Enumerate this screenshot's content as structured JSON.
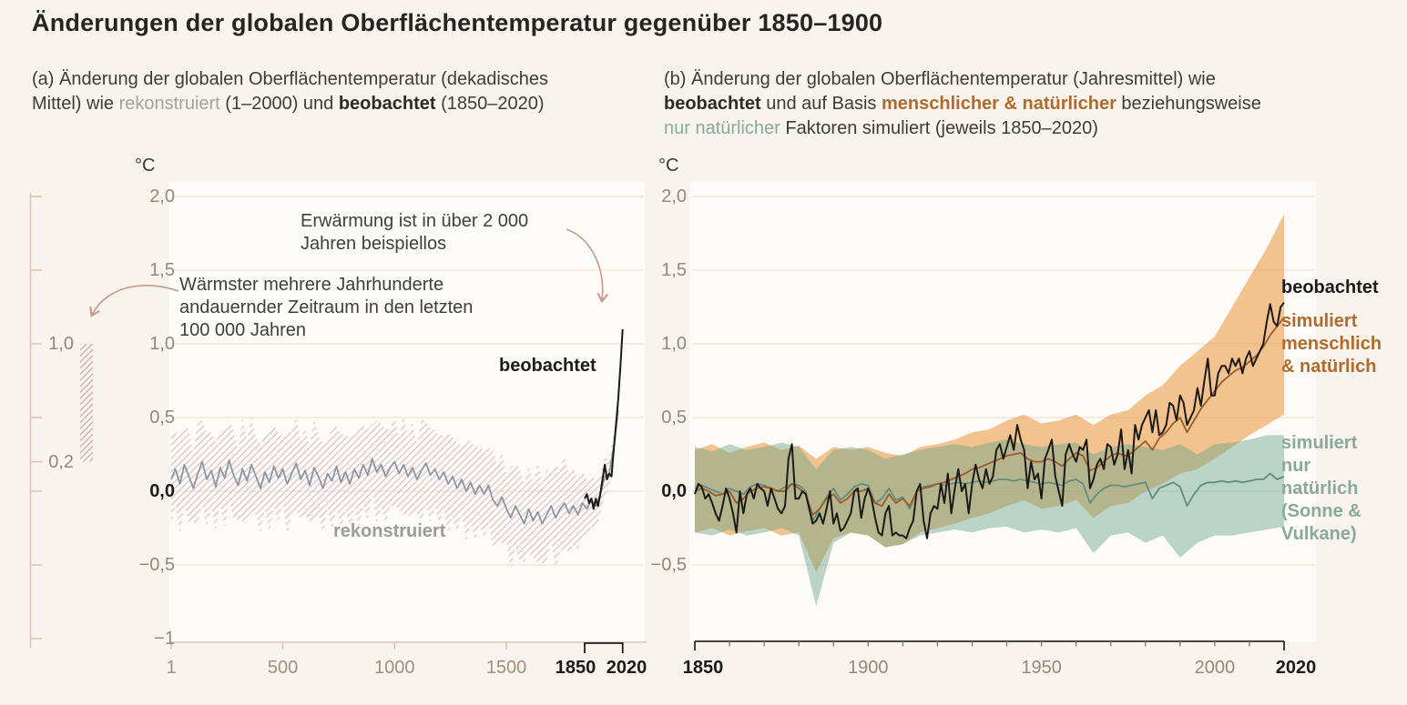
{
  "header": {
    "title": "Änderungen der globalen Oberflächentemperatur gegenüber 1850–1900"
  },
  "panel_a": {
    "subtitle": {
      "line1": "(a) Änderung der globalen Oberflächentemperatur (dekadisches",
      "line2_pre": "Mittel) wie ",
      "recon": "rekonstruiert",
      "mid": " (1–2000) und ",
      "obs": "beobachtet",
      "tail": " (1850–2020)"
    },
    "unit": "°C",
    "annotation_unprecedented": {
      "line1": "Erwärmung ist in über 2 000",
      "line2": "Jahren beispiellos"
    },
    "annotation_warmest": {
      "line1": "Wärmster mehrere Jahrhunderte",
      "line2": "andauernder Zeitraum in den letzten",
      "line3": "100 000 Jahren"
    },
    "labels": {
      "observed": "beobachtet",
      "reconstructed": "rekonstruiert"
    }
  },
  "panel_b": {
    "subtitle": {
      "line1": "(b) Änderung der globalen Oberflächentemperatur (Jahresmittel) wie",
      "obs": "beobachtet",
      "mid1": " und auf Basis ",
      "human": "menschlicher & natürlicher",
      "mid2": " beziehungsweise",
      "natural": "nur natürlicher",
      "tail": " Faktoren simuliert (jeweils 1850–2020)"
    },
    "unit": "°C",
    "labels": {
      "observed": "beobachtet",
      "human": [
        "simuliert",
        "menschlich",
        "& natürlich"
      ],
      "natural": [
        "simuliert",
        "nur",
        "natürlich",
        "(Sonne &",
        "Vulkane)"
      ]
    }
  },
  "colors": {
    "page_bg": "#f8f4ed",
    "plot_bg": "#fcfbf8",
    "grid": "#ebe3d6",
    "observed": "#1b1a18",
    "recon_line": "#8b97a5",
    "recon_hatch": "#d9b3ba",
    "bar_hatch": "#c8aab4",
    "human_natural_line": "#9c5a28",
    "human_natural_band": "#eca04f",
    "natural_line": "#5f8d80",
    "natural_band": "#6ba48c",
    "accent_orange": "#b06a2c",
    "accent_teal": "#8aa99a",
    "gray_label": "#9c9c9a",
    "tick": "#96877b",
    "warm_tick": "#a18e80",
    "tick_bold": "#1c1b19",
    "axis_rose": "#ddc3b7",
    "arrow": "#c59a8e",
    "axis_black": "#2e2b27",
    "minor_tick": "#7b7268"
  },
  "chart_data": [
    {
      "id": "a",
      "type": "line",
      "title": "Änderung der globalen Oberflächentemperatur (dekadisches Mittel) wie rekonstruiert (1–2000) und beobachtet (1850–2020)",
      "ylabel": "°C",
      "ylim": [
        -1,
        2
      ],
      "xlim": [
        1,
        2020
      ],
      "grid": true,
      "y_ticks": [
        {
          "v": 2.0,
          "label": "2,0"
        },
        {
          "v": 1.5,
          "label": "1,5"
        },
        {
          "v": 1.0,
          "label": "1,0"
        },
        {
          "v": 0.5,
          "label": "0,5"
        },
        {
          "v": 0.0,
          "label": "0,0",
          "bold": true
        },
        {
          "v": -0.5,
          "label": "−0,5"
        },
        {
          "v": -1,
          "label": "−1"
        }
      ],
      "x_ticks": [
        {
          "v": 1,
          "label": "1"
        },
        {
          "v": 500,
          "label": "500"
        },
        {
          "v": 1000,
          "label": "1000"
        },
        {
          "v": 1500,
          "label": "1500"
        }
      ],
      "x_bracket": {
        "from": 1850,
        "to": 2020,
        "label_from": "1850",
        "label_to": "2020"
      },
      "sidebar": {
        "bar_range": [
          0.2,
          1.0
        ],
        "tick_values": [
          2,
          1.5,
          1,
          0.5,
          0.2,
          0,
          -0.5,
          -1
        ],
        "labels": [
          {
            "v": 1.0,
            "t": "1,0"
          },
          {
            "v": 0.2,
            "t": "0,2"
          }
        ]
      },
      "series": [
        {
          "name": "rekonstruiert",
          "role": "reconstructed",
          "x_start": 0,
          "x_step": 20,
          "values": [
            0.08,
            0.15,
            0.05,
            0.18,
            0.1,
            0.02,
            0.12,
            0.2,
            0.08,
            0.14,
            0.03,
            0.16,
            0.09,
            0.21,
            0.11,
            0.04,
            0.15,
            0.07,
            0.18,
            0.1,
            0.02,
            0.13,
            0.06,
            0.17,
            0.09,
            0.15,
            0.05,
            0.12,
            0.19,
            0.08,
            0.14,
            0.04,
            0.16,
            0.1,
            0.02,
            0.12,
            0.07,
            0.17,
            0.06,
            0.13,
            0.05,
            0.15,
            0.09,
            0.18,
            0.11,
            0.22,
            0.13,
            0.18,
            0.1,
            0.16,
            0.2,
            0.12,
            0.18,
            0.1,
            0.16,
            0.08,
            0.14,
            0.19,
            0.11,
            0.15,
            0.08,
            0.13,
            0.05,
            0.1,
            0.02,
            0.08,
            0.0,
            0.06,
            -0.02,
            0.04,
            -0.02,
            0.04,
            -0.06,
            -0.1,
            -0.04,
            -0.12,
            -0.18,
            -0.1,
            -0.16,
            -0.22,
            -0.12,
            -0.2,
            -0.14,
            -0.22,
            -0.16,
            -0.1,
            -0.18,
            -0.12,
            -0.08,
            -0.15,
            -0.1,
            -0.16,
            -0.08,
            -0.12,
            -0.06,
            -0.1,
            -0.02,
            0.1,
            0.12,
            0.3,
            0.55
          ],
          "band_halfwidth": [
            0.3,
            0.25,
            0.34,
            0.27,
            0.31,
            0.23,
            0.35,
            0.28,
            0.32,
            0.26,
            0.3,
            0.25,
            0.34,
            0.27,
            0.31,
            0.23,
            0.35,
            0.28,
            0.32,
            0.26,
            0.3,
            0.25,
            0.34,
            0.27,
            0.31,
            0.23,
            0.35,
            0.28,
            0.32,
            0.26,
            0.3,
            0.25,
            0.34,
            0.27,
            0.31,
            0.23,
            0.35,
            0.28,
            0.32,
            0.26,
            0.3,
            0.25,
            0.34,
            0.27,
            0.31,
            0.23,
            0.35,
            0.28,
            0.32,
            0.26,
            0.3,
            0.25,
            0.34,
            0.27,
            0.31,
            0.23,
            0.35,
            0.28,
            0.32,
            0.26,
            0.3,
            0.25,
            0.34,
            0.27,
            0.31,
            0.23,
            0.35,
            0.28,
            0.32,
            0.26,
            0.3,
            0.25,
            0.34,
            0.27,
            0.31,
            0.23,
            0.35,
            0.28,
            0.32,
            0.26,
            0.3,
            0.25,
            0.34,
            0.27,
            0.31,
            0.23,
            0.35,
            0.28,
            0.32,
            0.26,
            0.26,
            0.24,
            0.22,
            0.2,
            0.18,
            0.16,
            0.14,
            0.12,
            0.1,
            0.08,
            0.07
          ]
        },
        {
          "name": "beobachtet",
          "role": "observed",
          "x_start": 1850,
          "x_step": 10,
          "values": [
            -0.05,
            -0.02,
            -0.08,
            -0.05,
            -0.12,
            -0.05,
            -0.1,
            -0.02,
            0.08,
            0.18,
            0.08,
            0.12,
            0.1,
            0.28,
            0.45,
            0.62,
            0.85,
            1.1
          ]
        }
      ]
    },
    {
      "id": "b",
      "type": "line",
      "title": "Änderung der globalen Oberflächentemperatur (Jahresmittel) wie beobachtet und auf Basis menschlicher & natürlicher beziehungsweise nur natürlicher Faktoren simuliert (jeweils 1850–2020)",
      "ylabel": "°C",
      "ylim": [
        -0.5,
        2
      ],
      "xlim": [
        1850,
        2020
      ],
      "grid": true,
      "minor_tick_step": 10,
      "y_ticks": [
        {
          "v": 2.0,
          "label": "2,0"
        },
        {
          "v": 1.5,
          "label": "1,5"
        },
        {
          "v": 1.0,
          "label": "1,0"
        },
        {
          "v": 0.5,
          "label": "0,5"
        },
        {
          "v": 0.0,
          "label": "0,0",
          "bold": true
        },
        {
          "v": -0.5,
          "label": "−0,5"
        }
      ],
      "x_ticks": [
        {
          "v": 1850,
          "label": "1850",
          "bold": true
        },
        {
          "v": 1900,
          "label": "1900"
        },
        {
          "v": 1950,
          "label": "1950"
        },
        {
          "v": 2000,
          "label": "2000"
        },
        {
          "v": 2020,
          "label": "2020",
          "bold": true
        }
      ],
      "series": [
        {
          "name": "simuliert menschlich & natürlich",
          "role": "human_natural",
          "x_start": 1850,
          "x_step": 2,
          "values": [
            0.0,
            0.02,
            0.0,
            -0.03,
            -0.02,
            0.0,
            -0.08,
            -0.05,
            0.0,
            0.02,
            0.03,
            0.02,
            0.0,
            0.0,
            0.05,
            0.02,
            -0.02,
            -0.16,
            -0.12,
            -0.05,
            -0.02,
            -0.08,
            -0.05,
            0.0,
            0.0,
            0.02,
            -0.08,
            -0.1,
            -0.02,
            -0.08,
            -0.05,
            -0.1,
            0.0,
            0.02,
            0.03,
            0.05,
            0.06,
            0.08,
            0.1,
            0.12,
            0.15,
            0.16,
            0.18,
            0.2,
            0.22,
            0.24,
            0.25,
            0.26,
            0.22,
            0.2,
            0.2,
            0.22,
            0.2,
            0.17,
            0.22,
            0.26,
            0.24,
            0.14,
            0.16,
            0.2,
            0.24,
            0.26,
            0.24,
            0.26,
            0.3,
            0.34,
            0.28,
            0.36,
            0.4,
            0.46,
            0.5,
            0.4,
            0.48,
            0.56,
            0.62,
            0.68,
            0.74,
            0.78,
            0.82,
            0.84,
            0.88,
            0.92,
            0.98,
            1.06,
            1.12,
            1.18
          ],
          "band": {
            "x_start": 1850,
            "x_step": 5,
            "top": [
              0.28,
              0.32,
              0.26,
              0.3,
              0.33,
              0.28,
              0.31,
              0.22,
              0.3,
              0.28,
              0.3,
              0.26,
              0.24,
              0.3,
              0.32,
              0.35,
              0.4,
              0.42,
              0.48,
              0.52,
              0.46,
              0.48,
              0.52,
              0.45,
              0.52,
              0.55,
              0.65,
              0.72,
              0.85,
              0.95,
              1.05,
              1.25,
              1.45,
              1.65,
              1.88
            ],
            "bottom": [
              -0.28,
              -0.25,
              -0.3,
              -0.27,
              -0.25,
              -0.3,
              -0.28,
              -0.55,
              -0.32,
              -0.28,
              -0.3,
              -0.38,
              -0.36,
              -0.28,
              -0.25,
              -0.22,
              -0.18,
              -0.15,
              -0.1,
              -0.06,
              -0.12,
              -0.1,
              -0.06,
              -0.18,
              -0.1,
              -0.08,
              0.0,
              0.05,
              0.12,
              0.15,
              0.22,
              0.3,
              0.38,
              0.45,
              0.52
            ]
          }
        },
        {
          "name": "simuliert nur natürlich (Sonne & Vulkane)",
          "role": "natural_only",
          "x_start": 1850,
          "x_step": 2,
          "values": [
            0.02,
            0.04,
            0.02,
            0.0,
            -0.02,
            0.02,
            0.0,
            -0.02,
            0.03,
            0.05,
            0.04,
            0.02,
            0.0,
            0.03,
            0.05,
            0.04,
            0.0,
            -0.2,
            -0.12,
            -0.04,
            0.02,
            -0.06,
            -0.02,
            0.03,
            0.05,
            0.04,
            -0.08,
            -0.05,
            0.02,
            -0.06,
            -0.04,
            -0.12,
            0.0,
            0.03,
            0.04,
            0.05,
            0.04,
            0.05,
            0.06,
            0.05,
            0.06,
            0.07,
            0.06,
            0.07,
            0.08,
            0.08,
            0.07,
            0.08,
            0.07,
            0.06,
            0.05,
            0.06,
            0.05,
            0.04,
            0.07,
            0.08,
            0.05,
            -0.08,
            -0.02,
            0.02,
            0.04,
            0.04,
            0.03,
            0.04,
            0.05,
            0.06,
            -0.05,
            0.02,
            0.04,
            0.06,
            0.03,
            -0.1,
            -0.02,
            0.04,
            0.06,
            0.06,
            0.07,
            0.06,
            0.07,
            0.06,
            0.07,
            0.08,
            0.08,
            0.12,
            0.08,
            0.1
          ],
          "band": {
            "x_start": 1850,
            "x_step": 5,
            "top": [
              0.3,
              0.27,
              0.32,
              0.28,
              0.3,
              0.33,
              0.3,
              0.15,
              0.28,
              0.3,
              0.28,
              0.22,
              0.25,
              0.28,
              0.3,
              0.32,
              0.3,
              0.33,
              0.35,
              0.32,
              0.3,
              0.32,
              0.33,
              0.25,
              0.3,
              0.32,
              0.3,
              0.28,
              0.32,
              0.25,
              0.32,
              0.33,
              0.35,
              0.38,
              0.38
            ],
            "bottom": [
              -0.28,
              -0.3,
              -0.26,
              -0.3,
              -0.28,
              -0.25,
              -0.3,
              -0.78,
              -0.35,
              -0.28,
              -0.3,
              -0.38,
              -0.36,
              -0.3,
              -0.28,
              -0.26,
              -0.28,
              -0.25,
              -0.24,
              -0.28,
              -0.26,
              -0.28,
              -0.25,
              -0.42,
              -0.3,
              -0.28,
              -0.35,
              -0.3,
              -0.45,
              -0.35,
              -0.3,
              -0.3,
              -0.28,
              -0.26,
              -0.24
            ]
          }
        },
        {
          "name": "beobachtet",
          "role": "observed",
          "x_start": 1850,
          "x_step": 1,
          "values": [
            -0.02,
            0.05,
            0.03,
            -0.05,
            -0.02,
            -0.08,
            -0.15,
            -0.2,
            -0.1,
            0.02,
            -0.05,
            -0.15,
            -0.28,
            0.0,
            -0.15,
            -0.02,
            0.02,
            -0.05,
            0.05,
            0.02,
            0.0,
            -0.1,
            0.02,
            -0.05,
            -0.12,
            -0.15,
            -0.1,
            0.22,
            0.32,
            -0.05,
            -0.05,
            0.0,
            -0.02,
            -0.12,
            -0.22,
            -0.2,
            -0.15,
            -0.22,
            -0.12,
            0.0,
            -0.22,
            -0.15,
            -0.27,
            -0.25,
            -0.2,
            -0.15,
            0.0,
            0.02,
            -0.18,
            -0.05,
            0.02,
            -0.05,
            -0.18,
            -0.28,
            -0.3,
            -0.15,
            -0.1,
            -0.3,
            -0.28,
            -0.3,
            -0.3,
            -0.32,
            -0.25,
            -0.2,
            0.0,
            0.05,
            -0.2,
            -0.32,
            -0.15,
            -0.1,
            -0.12,
            0.05,
            -0.08,
            0.12,
            -0.15,
            0.02,
            0.15,
            0.0,
            0.05,
            -0.15,
            0.05,
            0.18,
            0.08,
            0.02,
            0.15,
            0.05,
            0.1,
            0.28,
            0.32,
            0.22,
            0.3,
            0.38,
            0.28,
            0.45,
            0.35,
            0.28,
            0.02,
            0.2,
            0.08,
            0.12,
            -0.05,
            0.22,
            0.28,
            0.35,
            0.1,
            0.0,
            -0.1,
            0.25,
            0.32,
            0.25,
            0.2,
            0.3,
            0.28,
            0.35,
            0.02,
            0.08,
            0.18,
            0.22,
            0.15,
            0.32,
            0.3,
            0.18,
            0.25,
            0.42,
            0.15,
            0.28,
            0.12,
            0.45,
            0.35,
            0.45,
            0.5,
            0.55,
            0.4,
            0.55,
            0.38,
            0.4,
            0.45,
            0.6,
            0.58,
            0.48,
            0.65,
            0.6,
            0.45,
            0.5,
            0.55,
            0.7,
            0.58,
            0.75,
            0.9,
            0.65,
            0.65,
            0.8,
            0.85,
            0.85,
            0.8,
            0.9,
            0.85,
            0.9,
            0.8,
            0.9,
            0.95,
            0.85,
            0.9,
            0.95,
            1.0,
            1.15,
            1.27,
            1.15,
            1.12,
            1.25,
            1.28
          ]
        }
      ]
    }
  ]
}
